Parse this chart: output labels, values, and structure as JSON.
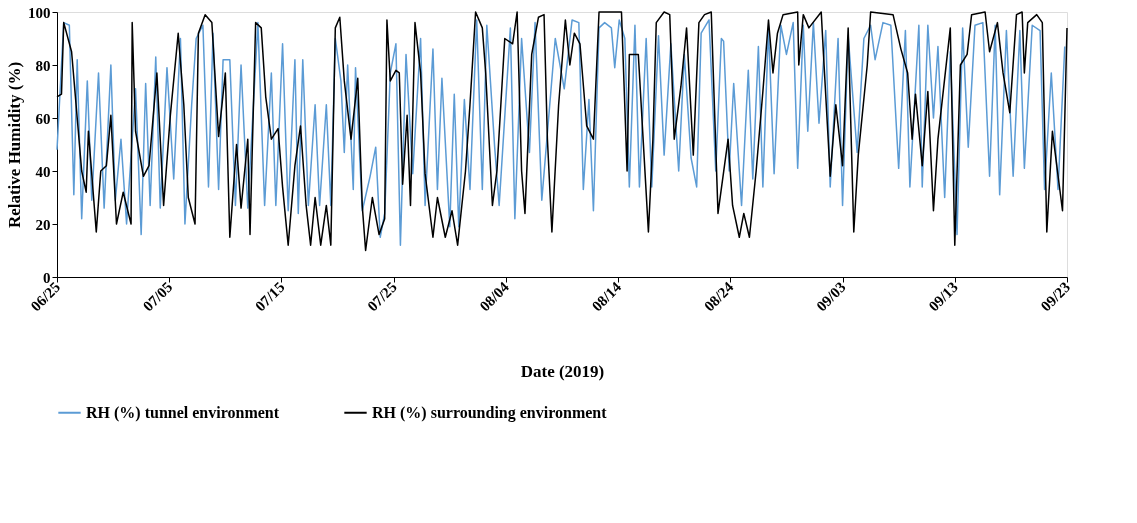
{
  "chart_data": {
    "type": "line",
    "xlabel": "Date (2019)",
    "ylabel": "Relative Humidity (%)",
    "xlim": [
      "2019-06-25",
      "2019-09-23"
    ],
    "xticks": [
      {
        "value": "2019-06-25",
        "label": "06/25"
      },
      {
        "value": "2019-07-05",
        "label": "07/05"
      },
      {
        "value": "2019-07-15",
        "label": "07/15"
      },
      {
        "value": "2019-07-25",
        "label": "07/25"
      },
      {
        "value": "2019-08-04",
        "label": "08/04"
      },
      {
        "value": "2019-08-14",
        "label": "08/14"
      },
      {
        "value": "2019-08-24",
        "label": "08/24"
      },
      {
        "value": "2019-09-03",
        "label": "09/03"
      },
      {
        "value": "2019-09-13",
        "label": "09/13"
      },
      {
        "value": "2019-09-23",
        "label": "09/23"
      }
    ],
    "ylim": [
      0,
      100
    ],
    "yticks": [
      0,
      20,
      40,
      60,
      80,
      100
    ],
    "grid": false,
    "legend": "bottom",
    "marker": "none",
    "line_style": "solid",
    "series": [
      {
        "name": "RH (%) tunnel environment",
        "color": "#5b9bd5",
        "x": [
          "2019-06-25T00:00",
          "2019-06-25T14:24",
          "2019-06-26T02:24",
          "2019-06-26T12:00",
          "2019-06-26T19:12",
          "2019-06-27T04:48",
          "2019-06-27T16:48",
          "2019-06-28T02:24",
          "2019-06-28T16:48",
          "2019-06-29T04:48",
          "2019-06-29T19:12",
          "2019-06-30T04:48",
          "2019-06-30T16:48",
          "2019-07-01T04:48",
          "2019-07-02T00:00",
          "2019-07-02T12:00",
          "2019-07-02T21:36",
          "2019-07-03T07:12",
          "2019-07-03T19:12",
          "2019-07-04T04:48",
          "2019-07-04T19:12",
          "2019-07-05T09:36",
          "2019-07-06T00:00",
          "2019-07-06T09:36",
          "2019-07-07T00:00",
          "2019-07-07T09:36",
          "2019-07-08T00:00",
          "2019-07-08T12:00",
          "2019-07-08T21:36",
          "2019-07-09T09:36",
          "2019-07-09T19:12",
          "2019-07-10T09:36",
          "2019-07-10T21:36",
          "2019-07-11T09:36",
          "2019-07-12T00:00",
          "2019-07-12T21:36",
          "2019-07-13T12:00",
          "2019-07-14T02:24",
          "2019-07-14T12:00",
          "2019-07-15T02:24",
          "2019-07-15T14:24",
          "2019-07-16T04:48",
          "2019-07-16T12:00",
          "2019-07-16T21:36",
          "2019-07-17T09:36",
          "2019-07-18T00:00",
          "2019-07-18T09:36",
          "2019-07-19T00:00",
          "2019-07-19T09:36",
          "2019-07-19T19:12",
          "2019-07-20T07:12",
          "2019-07-20T14:24",
          "2019-07-20T21:36",
          "2019-07-21T09:36",
          "2019-07-21T14:24",
          "2019-07-22T04:48",
          "2019-07-22T21:36",
          "2019-07-23T09:36",
          "2019-07-23T19:12",
          "2019-07-24T04:48",
          "2019-07-24T16:48",
          "2019-07-25T04:48",
          "2019-07-25T14:24",
          "2019-07-26T02:24",
          "2019-07-26T16:48",
          "2019-07-27T09:36",
          "2019-07-27T19:12",
          "2019-07-28T12:00",
          "2019-07-28T21:36",
          "2019-07-29T07:12",
          "2019-07-30T00:00",
          "2019-07-30T09:36",
          "2019-07-30T19:12",
          "2019-07-31T07:12",
          "2019-07-31T19:12",
          "2019-08-01T09:36",
          "2019-08-01T21:36",
          "2019-08-02T07:12",
          "2019-08-03T00:00",
          "2019-08-03T09:36",
          "2019-08-04T09:36",
          "2019-08-04T19:12",
          "2019-08-05T09:36",
          "2019-08-06T02:24",
          "2019-08-06T14:24",
          "2019-08-07T04:48",
          "2019-08-08T09:36",
          "2019-08-09T04:48",
          "2019-08-09T21:36",
          "2019-08-10T12:00",
          "2019-08-10T21:36",
          "2019-08-11T09:36",
          "2019-08-11T19:12",
          "2019-08-12T07:12",
          "2019-08-12T19:12",
          "2019-08-13T09:36",
          "2019-08-13T16:48",
          "2019-08-14T02:24",
          "2019-08-14T14:24",
          "2019-08-15T00:00",
          "2019-08-15T12:00",
          "2019-08-15T21:36",
          "2019-08-16T12:00",
          "2019-08-17T00:00",
          "2019-08-17T14:24",
          "2019-08-18T02:24",
          "2019-08-18T16:48",
          "2019-08-19T09:36",
          "2019-08-19T21:36",
          "2019-08-20T12:00",
          "2019-08-21T00:00",
          "2019-08-21T09:36",
          "2019-08-22T02:24",
          "2019-08-22T16:48",
          "2019-08-23T04:48",
          "2019-08-23T09:36",
          "2019-08-23T21:36",
          "2019-08-24T07:12",
          "2019-08-25T00:00",
          "2019-08-25T14:24",
          "2019-08-26T00:00",
          "2019-08-26T12:00",
          "2019-08-26T21:36",
          "2019-08-27T09:36",
          "2019-08-27T21:36",
          "2019-08-28T12:00",
          "2019-08-29T00:00",
          "2019-08-29T14:24",
          "2019-08-30T00:00",
          "2019-08-30T12:00",
          "2019-08-30T21:36",
          "2019-08-31T09:36",
          "2019-08-31T21:36",
          "2019-09-01T12:00",
          "2019-09-01T21:36",
          "2019-09-02T14:24",
          "2019-09-03T00:00",
          "2019-09-03T12:00",
          "2019-09-04T07:12",
          "2019-09-04T21:36",
          "2019-09-05T12:00",
          "2019-09-05T21:36",
          "2019-09-06T14:24",
          "2019-09-07T07:12",
          "2019-09-08T00:00",
          "2019-09-08T14:24",
          "2019-09-09T00:00",
          "2019-09-09T19:12",
          "2019-09-10T02:24",
          "2019-09-10T14:24",
          "2019-09-11T02:24",
          "2019-09-11T12:00",
          "2019-09-12T02:24",
          "2019-09-12T14:24",
          "2019-09-13T04:48",
          "2019-09-13T16:48",
          "2019-09-14T04:48",
          "2019-09-14T19:12",
          "2019-09-15T12:00",
          "2019-09-16T02:24",
          "2019-09-16T14:24",
          "2019-09-17T00:00",
          "2019-09-17T14:24",
          "2019-09-18T04:48",
          "2019-09-18T19:12",
          "2019-09-19T04:48",
          "2019-09-19T21:36",
          "2019-09-20T14:24",
          "2019-09-21T00:00",
          "2019-09-21T14:24",
          "2019-09-22T04:48",
          "2019-09-22T19:12"
        ],
        "values": [
          48,
          96,
          95,
          31,
          82,
          22,
          74,
          29,
          77,
          26,
          80,
          29,
          52,
          20,
          71,
          16,
          73,
          27,
          83,
          26,
          79,
          37,
          90,
          20,
          65,
          90,
          95,
          34,
          92,
          33,
          82,
          82,
          27,
          80,
          26,
          96,
          27,
          77,
          27,
          88,
          25,
          82,
          24,
          82,
          27,
          65,
          27,
          65,
          27,
          90,
          74,
          47,
          80,
          33,
          79,
          25,
          38,
          49,
          15,
          24,
          77,
          88,
          12,
          84,
          39,
          90,
          27,
          86,
          33,
          75,
          19,
          69,
          19,
          67,
          33,
          97,
          33,
          95,
          49,
          27,
          94,
          22,
          90,
          47,
          96,
          29,
          90,
          71,
          97,
          96,
          33,
          67,
          25,
          94,
          96,
          94,
          79,
          97,
          90,
          34,
          95,
          34,
          90,
          34,
          91,
          46,
          88,
          40,
          84,
          45,
          34,
          92,
          97,
          40,
          90,
          89,
          40,
          73,
          27,
          78,
          37,
          87,
          34,
          94,
          39,
          95,
          84,
          96,
          41,
          95,
          55,
          96,
          58,
          93,
          34,
          90,
          27,
          91,
          47,
          90,
          95,
          82,
          96,
          95,
          41,
          93,
          34,
          95,
          34,
          95,
          60,
          87,
          30,
          85,
          16,
          94,
          49,
          95,
          96,
          38,
          95,
          31,
          93,
          38,
          93,
          41,
          95,
          93,
          33,
          77,
          33,
          87
        ]
      },
      {
        "name": "RH (%) surrounding environment",
        "color": "#000000",
        "x": [
          "2019-06-25T00:00",
          "2019-06-25T09:36",
          "2019-06-25T14:24",
          "2019-06-26T07:12",
          "2019-06-27T04:48",
          "2019-06-27T14:24",
          "2019-06-27T19:12",
          "2019-06-28T12:00",
          "2019-06-28T21:36",
          "2019-06-29T09:36",
          "2019-06-29T19:12",
          "2019-06-30T07:12",
          "2019-06-30T21:36",
          "2019-07-01T14:24",
          "2019-07-01T16:48",
          "2019-07-02T00:00",
          "2019-07-02T16:48",
          "2019-07-03T04:48",
          "2019-07-03T21:36",
          "2019-07-04T12:00",
          "2019-07-05T02:24",
          "2019-07-05T19:12",
          "2019-07-06T07:12",
          "2019-07-06T16:48",
          "2019-07-07T07:12",
          "2019-07-07T14:24",
          "2019-07-08T04:48",
          "2019-07-08T19:12",
          "2019-07-09T09:36",
          "2019-07-10T00:00",
          "2019-07-10T09:36",
          "2019-07-11T00:00",
          "2019-07-11T09:36",
          "2019-07-12T00:00",
          "2019-07-12T04:48",
          "2019-07-12T16:48",
          "2019-07-13T04:48",
          "2019-07-13T14:24",
          "2019-07-14T02:24",
          "2019-07-14T16:48",
          "2019-07-15T02:24",
          "2019-07-15T14:24",
          "2019-07-16T04:48",
          "2019-07-16T16:48",
          "2019-07-17T04:48",
          "2019-07-17T14:24",
          "2019-07-18T00:00",
          "2019-07-18T12:00",
          "2019-07-19T00:00",
          "2019-07-19T09:36",
          "2019-07-19T19:12",
          "2019-07-20T04:48",
          "2019-07-20T14:24",
          "2019-07-21T04:48",
          "2019-07-21T19:12",
          "2019-07-22T04:48",
          "2019-07-22T12:00",
          "2019-07-23T02:24",
          "2019-07-23T16:48",
          "2019-07-24T04:48",
          "2019-07-24T09:36",
          "2019-07-24T16:48",
          "2019-07-25T04:48",
          "2019-07-25T12:00",
          "2019-07-25T19:12",
          "2019-07-26T04:48",
          "2019-07-26T12:00",
          "2019-07-26T21:36",
          "2019-07-27T09:36",
          "2019-07-27T19:12",
          "2019-07-28T12:00",
          "2019-07-28T21:36",
          "2019-07-29T14:24",
          "2019-07-30T04:48",
          "2019-07-30T16:48",
          "2019-07-31T09:36",
          "2019-07-31T19:12",
          "2019-08-01T07:12",
          "2019-08-01T21:36",
          "2019-08-02T04:48",
          "2019-08-02T19:12",
          "2019-08-03T04:48",
          "2019-08-03T21:36",
          "2019-08-04T14:24",
          "2019-08-05T00:00",
          "2019-08-05T09:36",
          "2019-08-05T16:48",
          "2019-08-06T07:12",
          "2019-08-06T21:36",
          "2019-08-07T09:36",
          "2019-08-07T16:48",
          "2019-08-08T02:24",
          "2019-08-08T16:48",
          "2019-08-09T07:12",
          "2019-08-09T16:48",
          "2019-08-10T02:24",
          "2019-08-10T14:24",
          "2019-08-11T04:48",
          "2019-08-11T19:12",
          "2019-08-12T07:12",
          "2019-08-14T07:12",
          "2019-08-14T19:12",
          "2019-08-15T00:00",
          "2019-08-15T19:12",
          "2019-08-16T16:48",
          "2019-08-17T02:24",
          "2019-08-17T09:36",
          "2019-08-18T02:24",
          "2019-08-18T14:24",
          "2019-08-19T00:00",
          "2019-08-19T14:24",
          "2019-08-20T02:24",
          "2019-08-20T16:48",
          "2019-08-21T04:48",
          "2019-08-21T16:48",
          "2019-08-22T07:12",
          "2019-08-22T21:36",
          "2019-08-23T19:12",
          "2019-08-24T04:48",
          "2019-08-24T19:12",
          "2019-08-25T04:48",
          "2019-08-25T16:48",
          "2019-08-26T07:12",
          "2019-08-26T21:36",
          "2019-08-27T09:36",
          "2019-08-27T19:12",
          "2019-08-28T04:48",
          "2019-08-28T16:48",
          "2019-08-30T00:00",
          "2019-08-30T02:24",
          "2019-08-30T12:00",
          "2019-08-31T00:00",
          "2019-09-01T02:24",
          "2019-09-01T07:12",
          "2019-09-01T21:36",
          "2019-09-02T09:36",
          "2019-09-03T00:00",
          "2019-09-03T12:00",
          "2019-09-04T00:00",
          "2019-09-04T09:36",
          "2019-09-05T04:48",
          "2019-09-05T12:00",
          "2019-09-07T12:00",
          "2019-09-08T04:48",
          "2019-09-08T19:12",
          "2019-09-09T04:48",
          "2019-09-09T12:00",
          "2019-09-10T02:24",
          "2019-09-10T14:24",
          "2019-09-11T02:24",
          "2019-09-11T12:00",
          "2019-09-12T14:24",
          "2019-09-13T00:00",
          "2019-09-13T12:00",
          "2019-09-14T02:24",
          "2019-09-14T12:00",
          "2019-09-15T16:48",
          "2019-09-16T02:24",
          "2019-09-16T19:12",
          "2019-09-17T07:12",
          "2019-09-17T21:36",
          "2019-09-18T12:00",
          "2019-09-19T00:00",
          "2019-09-19T04:48",
          "2019-09-19T12:00",
          "2019-09-20T07:12",
          "2019-09-20T19:12",
          "2019-09-21T04:48",
          "2019-09-21T16:48",
          "2019-09-22T14:24",
          "2019-09-23T00:00"
        ],
        "values": [
          68,
          69,
          96,
          85,
          40,
          32,
          55,
          17,
          40,
          42,
          61,
          20,
          32,
          20,
          96,
          55,
          38,
          42,
          77,
          27,
          61,
          92,
          65,
          30,
          20,
          92,
          99,
          96,
          53,
          77,
          15,
          50,
          26,
          52,
          16,
          96,
          94,
          68,
          52,
          56,
          34,
          12,
          42,
          57,
          27,
          12,
          30,
          12,
          27,
          12,
          94,
          98,
          74,
          52,
          75,
          27,
          10,
          30,
          16,
          22,
          97,
          74,
          78,
          77,
          35,
          61,
          27,
          96,
          77,
          39,
          15,
          30,
          15,
          25,
          12,
          40,
          65,
          100,
          94,
          77,
          27,
          40,
          90,
          88,
          100,
          40,
          24,
          84,
          98,
          99,
          52,
          17,
          65,
          97,
          80,
          92,
          88,
          57,
          52,
          100,
          100,
          40,
          84,
          84,
          17,
          52,
          96,
          100,
          99,
          52,
          72,
          94,
          46,
          96,
          99,
          100,
          24,
          52,
          27,
          15,
          24,
          15,
          40,
          70,
          97,
          77,
          92,
          99,
          100,
          80,
          99,
          94,
          100,
          84,
          38,
          65,
          42,
          94,
          17,
          46,
          80,
          100,
          99,
          86,
          77,
          52,
          69,
          42,
          70,
          25,
          52,
          94,
          12,
          80,
          84,
          99,
          100,
          85,
          96,
          77,
          62,
          99,
          100,
          77,
          96,
          99,
          96,
          17,
          55,
          25,
          94
        ]
      }
    ]
  }
}
